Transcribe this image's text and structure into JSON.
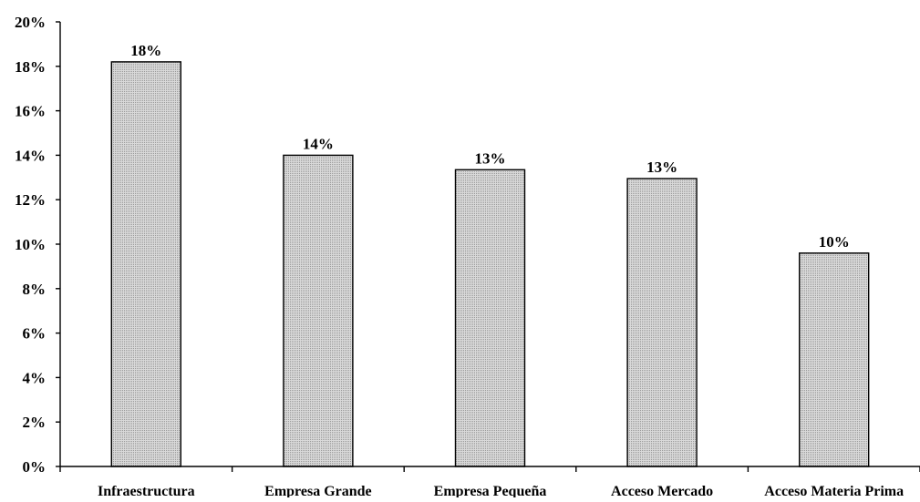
{
  "chart_data": {
    "type": "bar",
    "title": "",
    "xlabel": "",
    "ylabel": "",
    "categories": [
      "Infraestructura",
      "Empresa Grande",
      "Empresa Pequeña",
      "Acceso Mercado",
      "Acceso Materia Prima"
    ],
    "values": [
      18.2,
      14.0,
      13.35,
      12.95,
      9.6
    ],
    "data_labels": [
      "18%",
      "14%",
      "13%",
      "13%",
      "10%"
    ],
    "ylim": [
      0,
      20
    ],
    "y_ticks": [
      0,
      2,
      4,
      6,
      8,
      10,
      12,
      14,
      16,
      18,
      20
    ],
    "y_tick_labels": [
      "0%",
      "2%",
      "4%",
      "6%",
      "8%",
      "10%",
      "12%",
      "14%",
      "16%",
      "18%",
      "20%"
    ],
    "grid": false,
    "legend": "none",
    "bar_fill_pattern": "dotted-gray",
    "colors": {
      "bar_fill": "#d9d9d9",
      "bar_dot": "#9a9a9a",
      "bar_stroke": "#000000",
      "axis": "#000000",
      "background": "#ffffff"
    }
  }
}
